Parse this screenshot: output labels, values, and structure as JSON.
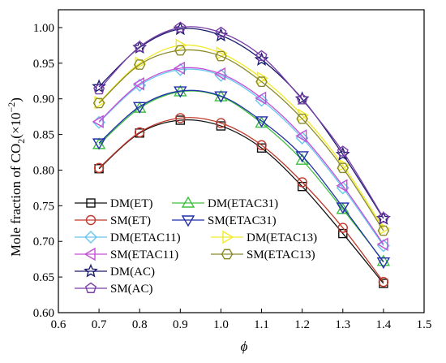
{
  "chart_data": {
    "type": "line",
    "xlabel": "ϕ",
    "ylabel_main": "Mole fraction of CO",
    "ylabel_sub": "2",
    "ylabel_paren_open": "(×10",
    "ylabel_sup": "−2",
    "ylabel_paren_close": ")",
    "xlim": [
      0.6,
      1.5
    ],
    "ylim": [
      0.6,
      1.025
    ],
    "xticks": [
      "0.6",
      "0.7",
      "0.8",
      "0.9",
      "1.0",
      "1.1",
      "1.2",
      "1.3",
      "1.4",
      "1.5"
    ],
    "yticks": [
      "0.60",
      "0.65",
      "0.70",
      "0.75",
      "0.80",
      "0.85",
      "0.90",
      "0.95",
      "1.00"
    ],
    "grid": false,
    "legend_position": "lower-left",
    "x": [
      0.7,
      0.8,
      0.9,
      1.0,
      1.1,
      1.2,
      1.3,
      1.4
    ],
    "series": [
      {
        "name": "DM(ET)",
        "color": "#111111",
        "marker": "square",
        "values": [
          0.802,
          0.852,
          0.87,
          0.862,
          0.831,
          0.777,
          0.711,
          0.641
        ]
      },
      {
        "name": "DM(ETAC31)",
        "color": "#3fbf3f",
        "marker": "triangle-up",
        "values": [
          0.836,
          0.887,
          0.91,
          0.903,
          0.866,
          0.814,
          0.745,
          0.672
        ]
      },
      {
        "name": "SM(ET)",
        "color": "#c0392b",
        "marker": "circle",
        "values": [
          0.803,
          0.853,
          0.873,
          0.866,
          0.835,
          0.783,
          0.719,
          0.643
        ]
      },
      {
        "name": "SM(ETAC31)",
        "color": "#1f2fa8",
        "marker": "triangle-down",
        "values": [
          0.838,
          0.889,
          0.911,
          0.904,
          0.869,
          0.82,
          0.748,
          0.671
        ]
      },
      {
        "name": "DM(ETAC11)",
        "color": "#66c8ee",
        "marker": "diamond",
        "values": [
          0.867,
          0.919,
          0.941,
          0.933,
          0.898,
          0.845,
          0.775,
          0.694
        ]
      },
      {
        "name": "DM(ETAC13)",
        "color": "#f2ea2a",
        "marker": "triangle-right",
        "values": [
          0.895,
          0.95,
          0.975,
          0.964,
          0.929,
          0.877,
          0.807,
          0.718
        ]
      },
      {
        "name": "SM(ETAC11)",
        "color": "#c44fd6",
        "marker": "triangle-left",
        "values": [
          0.868,
          0.921,
          0.943,
          0.935,
          0.901,
          0.848,
          0.778,
          0.696
        ]
      },
      {
        "name": "SM(ETAC13)",
        "color": "#8a8a2a",
        "marker": "hexagon",
        "values": [
          0.894,
          0.948,
          0.968,
          0.96,
          0.924,
          0.872,
          0.803,
          0.715
        ]
      },
      {
        "name": "DM(AC)",
        "color": "#1c1c6e",
        "marker": "star",
        "values": [
          0.917,
          0.972,
          0.998,
          0.989,
          0.955,
          0.9,
          0.822,
          0.732
        ]
      },
      {
        "name": "SM(AC)",
        "color": "#7a3ea8",
        "marker": "pentagon",
        "values": [
          0.913,
          0.973,
          1.0,
          0.993,
          0.96,
          0.899,
          0.826,
          0.733
        ]
      }
    ]
  }
}
